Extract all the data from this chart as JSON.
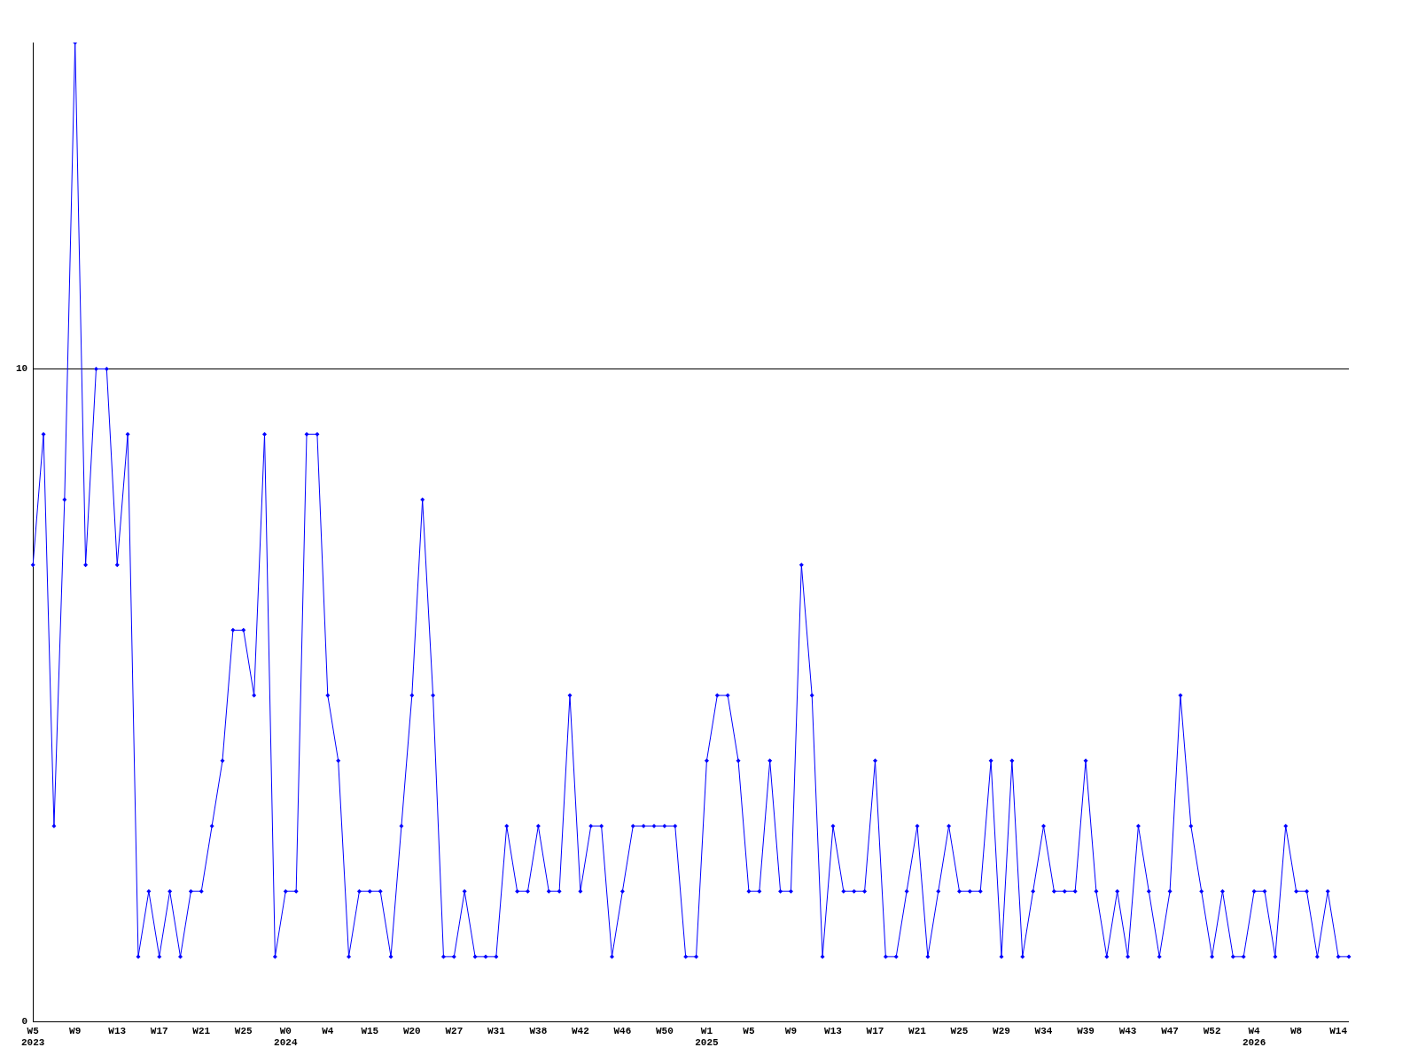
{
  "chart_data": {
    "type": "line",
    "categories": [
      "W5\n2023",
      null,
      null,
      null,
      "W9",
      null,
      null,
      null,
      "W13",
      null,
      null,
      null,
      "W17",
      null,
      null,
      null,
      "W21",
      null,
      null,
      null,
      "W25",
      null,
      null,
      null,
      "W0\n2024",
      null,
      null,
      null,
      "W4",
      null,
      null,
      null,
      "W15",
      null,
      null,
      null,
      "W20",
      null,
      null,
      null,
      "W27",
      null,
      null,
      null,
      "W31",
      null,
      null,
      null,
      "W38",
      null,
      null,
      null,
      "W42",
      null,
      null,
      null,
      "W46",
      null,
      null,
      null,
      "W50",
      null,
      null,
      null,
      "W1\n2025",
      null,
      null,
      null,
      "W5",
      null,
      null,
      null,
      "W9",
      null,
      null,
      null,
      "W13",
      null,
      null,
      null,
      "W17",
      null,
      null,
      null,
      "W21",
      null,
      null,
      null,
      "W25",
      null,
      null,
      null,
      "W29",
      null,
      null,
      null,
      "W34",
      null,
      null,
      null,
      "W39",
      null,
      null,
      null,
      "W43",
      null,
      null,
      null,
      "W47",
      null,
      null,
      null,
      "W52",
      null,
      null,
      null,
      "W4\n2026",
      null,
      null,
      null,
      "W8",
      null,
      null,
      null,
      "W14",
      null
    ],
    "series": [
      {
        "color": "#0000ff",
        "values": [
          7,
          9,
          3,
          8,
          15,
          7,
          10,
          10,
          7,
          9,
          1,
          2,
          1,
          2,
          1,
          2,
          2,
          3,
          4,
          6,
          6,
          5,
          9,
          1,
          2,
          2,
          9,
          9,
          5,
          4,
          1,
          2,
          2,
          2,
          1,
          3,
          5,
          8,
          5,
          1,
          1,
          2,
          1,
          1,
          1,
          3,
          2,
          2,
          3,
          2,
          2,
          5,
          2,
          3,
          3,
          1,
          2,
          3,
          3,
          3,
          3,
          3,
          1,
          1,
          4,
          5,
          5,
          4,
          2,
          2,
          4,
          2,
          2,
          7,
          5,
          1,
          3,
          2,
          2,
          2,
          4,
          1,
          1,
          2,
          3,
          1,
          2,
          3,
          2,
          2,
          2,
          4,
          1,
          4,
          1,
          2,
          3,
          2,
          2,
          2,
          4,
          2,
          1,
          2,
          1,
          3,
          2,
          1,
          2,
          5,
          3,
          2,
          1,
          2,
          1,
          1,
          2,
          2,
          1,
          3,
          2,
          2,
          1,
          2,
          1,
          1
        ]
      }
    ],
    "ylim": [
      0,
      15
    ],
    "yticks": [
      0,
      10
    ],
    "grid": "y",
    "marker": "diamond",
    "line_style": "solid",
    "legend": false
  }
}
